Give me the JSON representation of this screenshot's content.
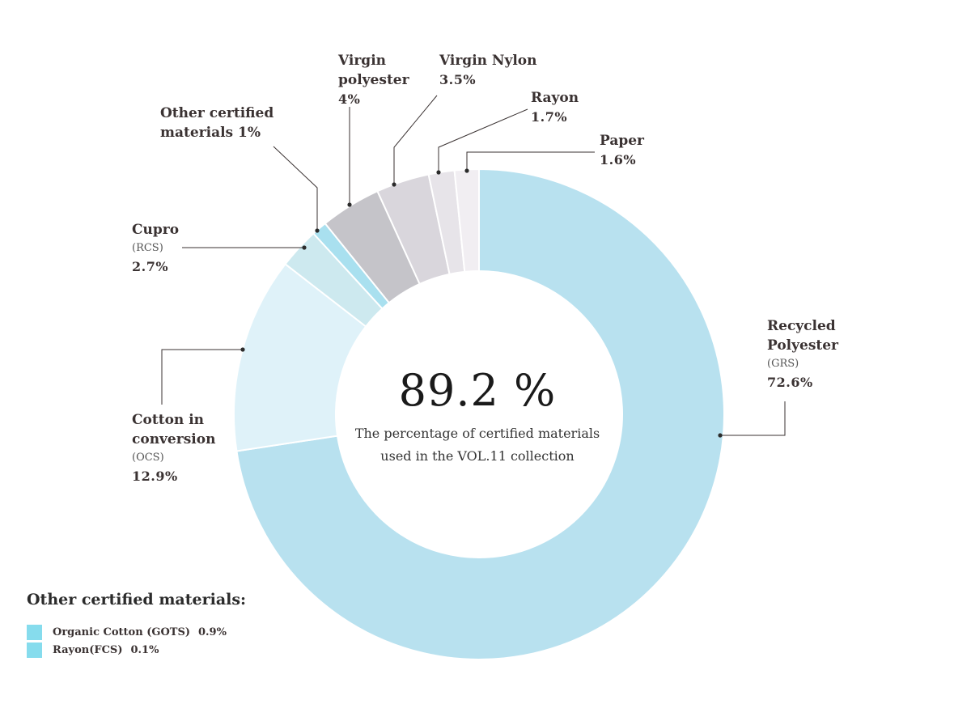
{
  "chart_data": {
    "type": "pie",
    "title": "",
    "center_value": "89.2 %",
    "center_text_line1": "The percentage of certified materials",
    "center_text_line2": "used in the VOL.11 collection",
    "series": [
      {
        "name": "Recycled Polyester",
        "cert": "(GRS)",
        "value": 72.6,
        "label": "72.6%",
        "color": "#b8e1ef"
      },
      {
        "name": "Cotton in conversion",
        "cert": "(OCS)",
        "value": 12.9,
        "label": "12.9%",
        "color": "#dff2f9"
      },
      {
        "name": "Cupro",
        "cert": "(RCS)",
        "value": 2.7,
        "label": "2.7%",
        "color": "#cde9ef"
      },
      {
        "name": "Other certified materials",
        "cert": "",
        "value": 1.0,
        "label": "1%",
        "color": "#a9e0ef"
      },
      {
        "name": "Virgin polyester",
        "cert": "",
        "value": 4.0,
        "label": "4%",
        "color": "#c5c4c9"
      },
      {
        "name": "Virgin Nylon",
        "cert": "",
        "value": 3.5,
        "label": "3.5%",
        "color": "#d9d6dc"
      },
      {
        "name": "Rayon",
        "cert": "",
        "value": 1.7,
        "label": "1.7%",
        "color": "#e7e4e9"
      },
      {
        "name": "Paper",
        "cert": "",
        "value": 1.6,
        "label": "1.6%",
        "color": "#f1eef2"
      }
    ],
    "breakdown": {
      "title": "Other certified materials:",
      "items": [
        {
          "name": "Organic Cotton (GOTS)",
          "label": "0.9%",
          "color": "#86dced"
        },
        {
          "name": "Rayon(FCS)",
          "label": "0.1%",
          "color": "#86dced"
        }
      ]
    }
  },
  "labels": {
    "recycled_polyester": {
      "l1": "Recycled",
      "l2": "Polyester",
      "cert": "(GRS)",
      "pct": "72.6%"
    },
    "cotton": {
      "l1": "Cotton in",
      "l2": "conversion",
      "cert": "(OCS)",
      "pct": "12.9%"
    },
    "cupro": {
      "l1": "Cupro",
      "cert": "(RCS)",
      "pct": "2.7%"
    },
    "other": {
      "l1": "Other certified",
      "l2": "materials 1%"
    },
    "virgin_polyester": {
      "l1": "Virgin",
      "l2": "polyester",
      "pct": "4%"
    },
    "virgin_nylon": {
      "l1": "Virgin Nylon",
      "pct": "3.5%"
    },
    "rayon": {
      "l1": "Rayon",
      "pct": "1.7%"
    },
    "paper": {
      "l1": "Paper",
      "pct": "1.6%"
    }
  }
}
